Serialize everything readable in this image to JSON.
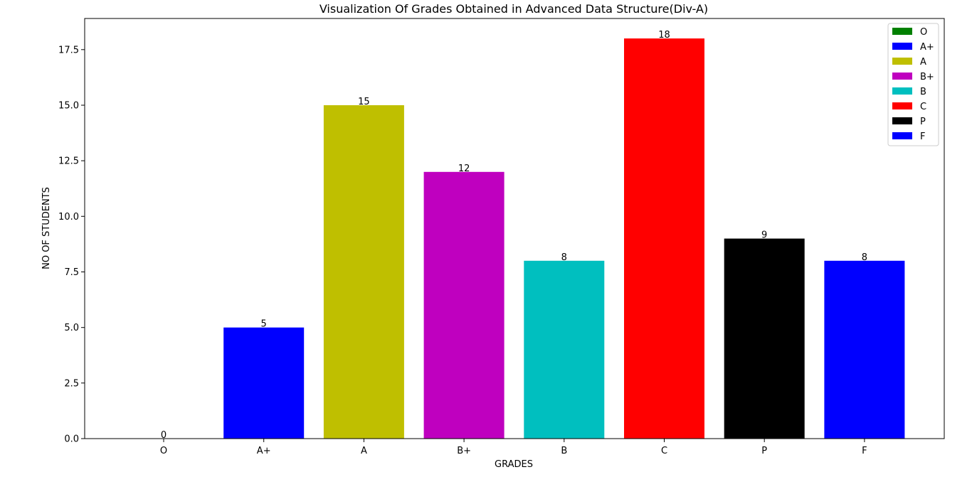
{
  "chart_data": {
    "type": "bar",
    "title": "Visualization Of Grades Obtained in Advanced Data Structure(Div-A)",
    "xlabel": "GRADES",
    "ylabel": "NO OF STUDENTS",
    "categories": [
      "O",
      "A+",
      "A",
      "B+",
      "B",
      "C",
      "P",
      "F"
    ],
    "values": [
      0,
      5,
      15,
      12,
      8,
      18,
      9,
      8
    ],
    "colors": [
      "#008000",
      "#0000ff",
      "#bfbf00",
      "#bf00bf",
      "#00bfbf",
      "#ff0000",
      "#000000",
      "#0000ff"
    ],
    "ylim": [
      0,
      18.9
    ],
    "yticks": [
      "0.0",
      "2.5",
      "5.0",
      "7.5",
      "10.0",
      "12.5",
      "15.0",
      "17.5"
    ],
    "ytick_values": [
      0,
      2.5,
      5,
      7.5,
      10,
      12.5,
      15,
      17.5
    ],
    "grid": false,
    "legend": {
      "placement": "top-right",
      "entries": [
        "O",
        "A+",
        "A",
        "B+",
        "B",
        "C",
        "P",
        "F"
      ]
    }
  }
}
